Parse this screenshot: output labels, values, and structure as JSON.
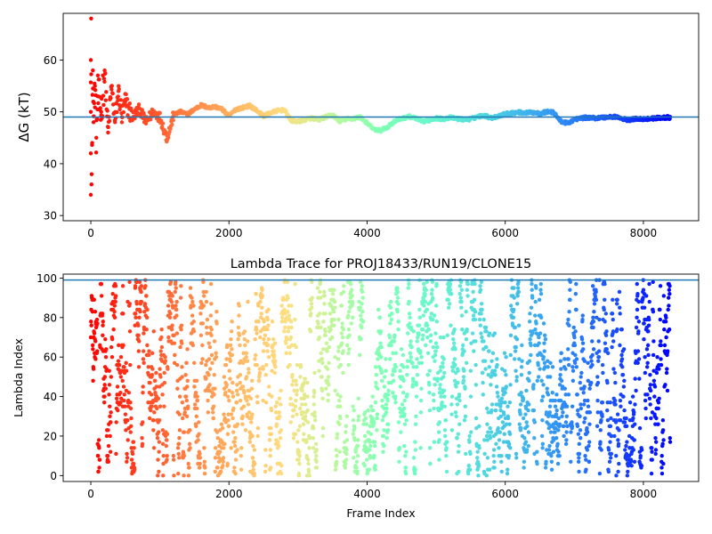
{
  "chart_data": [
    {
      "type": "scatter",
      "title": "",
      "xlabel": "",
      "ylabel": "ΔG (kT)",
      "xlim": [
        -400,
        8800
      ],
      "ylim": [
        29,
        69
      ],
      "x_ticks": [
        0,
        2000,
        4000,
        6000,
        8000
      ],
      "y_ticks": [
        30,
        40,
        50,
        60
      ],
      "reference_line": {
        "y": 49.0,
        "color": "#1f77b4"
      },
      "colormap": "rainbow (red at frame 0 → violet at last frame)",
      "legend": "none",
      "grid": false,
      "series": [
        {
          "values_description_points": [
            [
              0,
              60
            ],
            [
              0,
              34
            ],
            [
              0,
              42
            ],
            [
              0,
              50
            ],
            [
              5,
              68
            ],
            [
              10,
              36
            ],
            [
              20,
              44
            ],
            [
              30,
              58
            ],
            [
              40,
              48
            ],
            [
              60,
              55
            ],
            [
              80,
              45
            ],
            [
              100,
              53
            ],
            [
              150,
              50
            ],
            [
              200,
              58
            ],
            [
              250,
              46
            ],
            [
              300,
              55
            ],
            [
              350,
              48
            ],
            [
              400,
              54
            ],
            [
              450,
              49
            ],
            [
              500,
              52
            ],
            [
              600,
              49
            ],
            [
              700,
              50.5
            ],
            [
              800,
              48
            ],
            [
              900,
              50
            ],
            [
              1000,
              49
            ],
            [
              1100,
              45
            ],
            [
              1150,
              47
            ],
            [
              1200,
              49.5
            ],
            [
              1300,
              50
            ],
            [
              1400,
              49.5
            ],
            [
              1500,
              50.5
            ],
            [
              1600,
              51.3
            ],
            [
              1700,
              50.8
            ],
            [
              1800,
              51
            ],
            [
              1900,
              50.5
            ],
            [
              2000,
              49.2
            ],
            [
              2100,
              50.5
            ],
            [
              2200,
              50.8
            ],
            [
              2300,
              51.2
            ],
            [
              2400,
              50.3
            ],
            [
              2500,
              49.2
            ],
            [
              2600,
              49.8
            ],
            [
              2700,
              50.2
            ],
            [
              2800,
              50.4
            ],
            [
              2900,
              48.3
            ],
            [
              3000,
              48.1
            ],
            [
              3100,
              48.5
            ],
            [
              3200,
              48.8
            ],
            [
              3300,
              48.5
            ],
            [
              3400,
              49
            ],
            [
              3500,
              49.4
            ],
            [
              3600,
              48.2
            ],
            [
              3700,
              48.6
            ],
            [
              3800,
              48.7
            ],
            [
              3900,
              49
            ],
            [
              4000,
              47.8
            ],
            [
              4100,
              46.6
            ],
            [
              4200,
              46.4
            ],
            [
              4300,
              47.1
            ],
            [
              4400,
              48.2
            ],
            [
              4500,
              48.7
            ],
            [
              4600,
              49.1
            ],
            [
              4700,
              48.8
            ],
            [
              4800,
              48.1
            ],
            [
              4900,
              48.4
            ],
            [
              5000,
              48.8
            ],
            [
              5100,
              48.6
            ],
            [
              5200,
              48.9
            ],
            [
              5300,
              48.7
            ],
            [
              5400,
              48.5
            ],
            [
              5500,
              48.6
            ],
            [
              5600,
              49.1
            ],
            [
              5700,
              49.3
            ],
            [
              5800,
              48.8
            ],
            [
              5900,
              49.2
            ],
            [
              6000,
              49.6
            ],
            [
              6100,
              49.8
            ],
            [
              6200,
              49.9
            ],
            [
              6300,
              49.8
            ],
            [
              6400,
              49.9
            ],
            [
              6500,
              49.7
            ],
            [
              6600,
              50
            ],
            [
              6700,
              49.9
            ],
            [
              6800,
              48.2
            ],
            [
              6900,
              47.8
            ],
            [
              7000,
              48.5
            ],
            [
              7100,
              48.8
            ],
            [
              7200,
              48.9
            ],
            [
              7300,
              48.8
            ],
            [
              7400,
              48.9
            ],
            [
              7500,
              49
            ],
            [
              7600,
              49.1
            ],
            [
              7700,
              48.6
            ],
            [
              7800,
              48.4
            ],
            [
              7900,
              48.7
            ],
            [
              8000,
              48.6
            ],
            [
              8100,
              48.7
            ],
            [
              8200,
              48.8
            ],
            [
              8300,
              48.9
            ],
            [
              8390,
              48.9
            ]
          ]
        }
      ]
    },
    {
      "type": "scatter",
      "title": "Lambda Trace for PROJ18433/RUN19/CLONE15",
      "xlabel": "Frame Index",
      "ylabel": "Lambda Index",
      "xlim": [
        -400,
        8800
      ],
      "ylim": [
        -3,
        102
      ],
      "x_ticks": [
        0,
        2000,
        4000,
        6000,
        8000
      ],
      "y_ticks": [
        0,
        20,
        40,
        60,
        80,
        100
      ],
      "reference_line": {
        "y": 99,
        "color": "#1f77b4"
      },
      "colormap": "rainbow (red at frame 0 → violet at last frame)",
      "legend": "none",
      "grid": false,
      "frame_range": [
        0,
        8390
      ],
      "lambda_range": [
        0,
        99
      ],
      "description": "dense random scatter of lambda index per frame"
    }
  ]
}
